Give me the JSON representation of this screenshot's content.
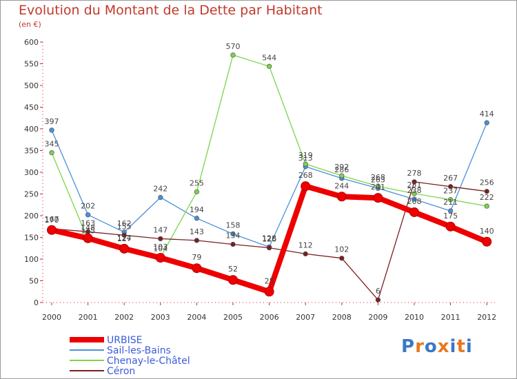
{
  "title": "Evolution du Montant de la Dette par Habitant",
  "unit_label": "(en €)",
  "logo": {
    "text": "Proxiti",
    "letter_colors": [
      "#3a78c9",
      "#e8781e",
      "#3a78c9",
      "#e8781e",
      "#3a78c9",
      "#e8781e",
      "#3a78c9"
    ]
  },
  "chart_data": {
    "type": "line",
    "x": [
      "2000",
      "2001",
      "2002",
      "2003",
      "2004",
      "2005",
      "2006",
      "2007",
      "2008",
      "2009",
      "2010",
      "2011",
      "2012"
    ],
    "ylim": [
      0,
      600
    ],
    "yticks": [
      0,
      50,
      100,
      150,
      200,
      250,
      300,
      350,
      400,
      450,
      500,
      550,
      600
    ],
    "grid": false,
    "legend_position": "bottom-left",
    "series": [
      {
        "name": "URBISE",
        "color": "#ee0000",
        "style": "thick",
        "values": [
          167,
          148,
          124,
          103,
          79,
          52,
          25,
          268,
          244,
          241,
          208,
          175,
          140
        ],
        "labels": [
          "167",
          "148",
          "124",
          "103",
          "79",
          "52",
          "25",
          "268",
          "244",
          "241",
          "208",
          "175",
          "140"
        ]
      },
      {
        "name": "Sail-les-Bains",
        "color": "#4a90d9",
        "style": "thin",
        "values": [
          397,
          202,
          162,
          242,
          194,
          158,
          128,
          313,
          286,
          263,
          238,
          211,
          414
        ],
        "labels": [
          "397",
          "202",
          "162",
          "242",
          "194",
          "158",
          "128",
          "313",
          "286",
          "263",
          "238",
          "211",
          "414"
        ]
      },
      {
        "name": "Chenay-le-Châtel",
        "color": "#7dd34a",
        "style": "thin",
        "values": [
          345,
          145,
          127,
          104,
          255,
          570,
          544,
          319,
          292,
          268,
          251,
          237,
          222
        ],
        "labels": [
          "345",
          "145",
          "127",
          "104",
          "255",
          "570",
          "544",
          "319",
          "292",
          "268",
          "251",
          "237",
          "222"
        ]
      },
      {
        "name": "Céron",
        "color": "#7a1f1f",
        "style": "thin",
        "values": [
          170,
          163,
          155,
          147,
          143,
          134,
          126,
          112,
          102,
          6,
          278,
          267,
          256
        ],
        "labels": [
          "170",
          "163",
          "155",
          "147",
          "143",
          "134",
          "126",
          "112",
          "102",
          "6",
          "278",
          "267",
          "256"
        ]
      }
    ]
  }
}
